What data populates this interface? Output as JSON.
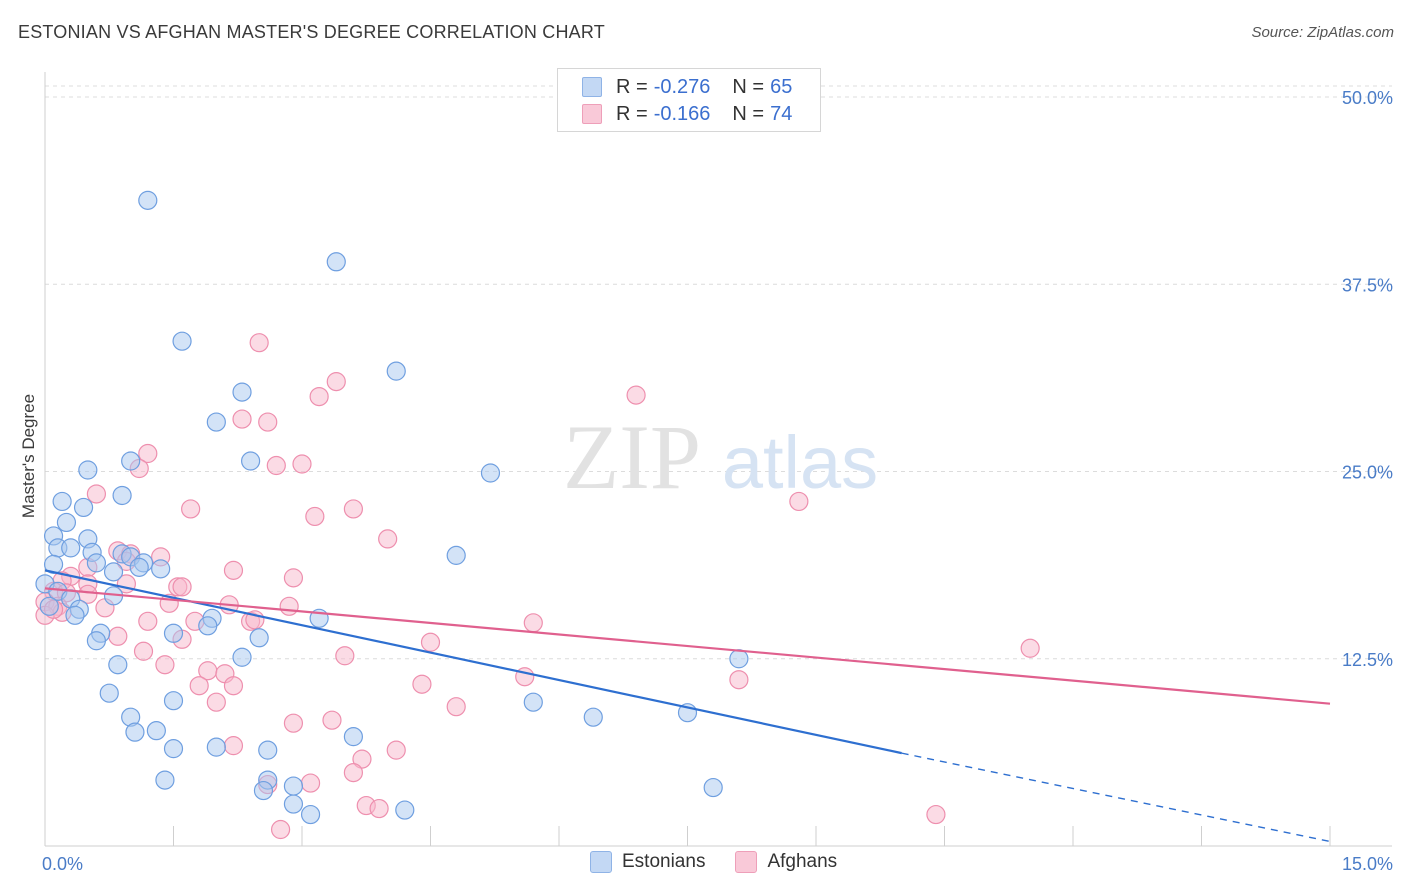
{
  "header": {
    "title": "ESTONIAN VS AFGHAN MASTER'S DEGREE CORRELATION CHART",
    "source": "Source: ZipAtlas.com"
  },
  "watermark": {
    "zip": "ZIP",
    "atlas": "atlas"
  },
  "legend": {
    "rows": [
      {
        "r_label": "R = ",
        "r_value": "-0.276",
        "n_label": "N = ",
        "n_value": "65",
        "color": "#a8c8f0"
      },
      {
        "r_label": "R = ",
        "r_value": "-0.166",
        "n_label": "N = ",
        "n_value": "74",
        "color": "#f7b8cc"
      }
    ]
  },
  "bottom_legend": {
    "items": [
      {
        "label": "Estonians",
        "color": "#a8c8f0"
      },
      {
        "label": "Afghans",
        "color": "#f7b8cc"
      }
    ]
  },
  "chart_data": {
    "type": "scatter",
    "title": "ESTONIAN VS AFGHAN MASTER'S DEGREE CORRELATION CHART",
    "xlabel": "",
    "ylabel": "Master's Degree",
    "xlim": [
      0,
      15
    ],
    "ylim": [
      0,
      51
    ],
    "x_tick_labels": [
      {
        "value": 0,
        "label": "0.0%"
      },
      {
        "value": 15,
        "label": "15.0%"
      }
    ],
    "y_tick_labels": [
      {
        "value": 12.5,
        "label": "12.5%"
      },
      {
        "value": 25,
        "label": "25.0%"
      },
      {
        "value": 37.5,
        "label": "37.5%"
      },
      {
        "value": 50,
        "label": "50.0%"
      }
    ],
    "x_minor_ticks": [
      0,
      1.5,
      3,
      4.5,
      6,
      7.5,
      9,
      10.5,
      12,
      13.5,
      15
    ],
    "grid": true,
    "legend_position": "top-center",
    "series": [
      {
        "name": "Estonians",
        "color": "#a8c8f0",
        "stroke": "#6f9fe0",
        "trend": {
          "x_start": 0,
          "y_start": 18.4,
          "x_end": 10.0,
          "y_end": 6.2,
          "dashed_to_x": 15,
          "dashed_to_y": 0.3,
          "color": "#2e6fd0"
        },
        "points": [
          [
            1.2,
            43.1
          ],
          [
            3.4,
            39.0
          ],
          [
            1.6,
            33.7
          ],
          [
            2.3,
            30.3
          ],
          [
            4.1,
            31.7
          ],
          [
            2.0,
            28.3
          ],
          [
            1.0,
            25.7
          ],
          [
            2.4,
            25.7
          ],
          [
            5.2,
            24.9
          ],
          [
            0.5,
            25.1
          ],
          [
            0.9,
            23.4
          ],
          [
            0.2,
            23.0
          ],
          [
            0.45,
            22.6
          ],
          [
            0.25,
            21.6
          ],
          [
            0.1,
            20.7
          ],
          [
            0.5,
            20.5
          ],
          [
            0.15,
            19.9
          ],
          [
            0.3,
            19.9
          ],
          [
            0.55,
            19.6
          ],
          [
            0.9,
            19.5
          ],
          [
            1.0,
            19.3
          ],
          [
            4.8,
            19.4
          ],
          [
            0.6,
            18.9
          ],
          [
            0.1,
            18.8
          ],
          [
            1.15,
            18.9
          ],
          [
            1.1,
            18.6
          ],
          [
            1.35,
            18.5
          ],
          [
            0.8,
            18.3
          ],
          [
            0.0,
            17.5
          ],
          [
            0.15,
            17.0
          ],
          [
            0.3,
            16.5
          ],
          [
            0.05,
            16.0
          ],
          [
            0.8,
            16.7
          ],
          [
            0.4,
            15.8
          ],
          [
            0.35,
            15.4
          ],
          [
            1.95,
            15.2
          ],
          [
            3.2,
            15.2
          ],
          [
            1.9,
            14.7
          ],
          [
            1.5,
            14.2
          ],
          [
            0.65,
            14.2
          ],
          [
            0.6,
            13.7
          ],
          [
            2.5,
            13.9
          ],
          [
            2.3,
            12.6
          ],
          [
            0.85,
            12.1
          ],
          [
            8.1,
            12.5
          ],
          [
            0.75,
            10.2
          ],
          [
            1.5,
            9.7
          ],
          [
            5.7,
            9.6
          ],
          [
            7.5,
            8.9
          ],
          [
            1.0,
            8.6
          ],
          [
            6.4,
            8.6
          ],
          [
            1.05,
            7.6
          ],
          [
            1.3,
            7.7
          ],
          [
            3.6,
            7.3
          ],
          [
            1.5,
            6.5
          ],
          [
            2.0,
            6.6
          ],
          [
            2.6,
            6.4
          ],
          [
            1.4,
            4.4
          ],
          [
            2.6,
            4.4
          ],
          [
            2.9,
            4.0
          ],
          [
            2.55,
            3.7
          ],
          [
            7.8,
            3.9
          ],
          [
            2.9,
            2.8
          ],
          [
            3.1,
            2.1
          ],
          [
            4.2,
            2.4
          ]
        ]
      },
      {
        "name": "Afghans",
        "color": "#f7b8cc",
        "stroke": "#ee8fae",
        "trend": {
          "x_start": 0,
          "y_start": 17.2,
          "x_end": 15,
          "y_end": 9.5,
          "color": "#e0608e"
        },
        "points": [
          [
            2.5,
            33.6
          ],
          [
            3.2,
            30.0
          ],
          [
            3.4,
            31.0
          ],
          [
            6.9,
            30.1
          ],
          [
            2.3,
            28.5
          ],
          [
            2.6,
            28.3
          ],
          [
            1.2,
            26.2
          ],
          [
            1.1,
            25.2
          ],
          [
            2.7,
            25.4
          ],
          [
            3.0,
            25.5
          ],
          [
            8.8,
            23.0
          ],
          [
            0.6,
            23.5
          ],
          [
            1.7,
            22.5
          ],
          [
            3.6,
            22.5
          ],
          [
            3.15,
            22.0
          ],
          [
            4.0,
            20.5
          ],
          [
            0.85,
            19.7
          ],
          [
            1.0,
            19.5
          ],
          [
            1.35,
            19.3
          ],
          [
            0.95,
            19.0
          ],
          [
            0.5,
            18.6
          ],
          [
            2.2,
            18.4
          ],
          [
            0.3,
            18.0
          ],
          [
            0.2,
            17.7
          ],
          [
            0.5,
            17.5
          ],
          [
            0.95,
            17.5
          ],
          [
            1.55,
            17.3
          ],
          [
            1.6,
            17.3
          ],
          [
            0.1,
            17.0
          ],
          [
            0.25,
            16.9
          ],
          [
            0.5,
            16.8
          ],
          [
            2.9,
            17.9
          ],
          [
            0.0,
            16.3
          ],
          [
            0.15,
            16.0
          ],
          [
            0.2,
            15.6
          ],
          [
            0.7,
            15.9
          ],
          [
            1.45,
            16.2
          ],
          [
            2.15,
            16.1
          ],
          [
            2.85,
            16.0
          ],
          [
            0.0,
            15.4
          ],
          [
            1.2,
            15.0
          ],
          [
            1.75,
            15.0
          ],
          [
            2.4,
            15.0
          ],
          [
            2.45,
            15.1
          ],
          [
            5.7,
            14.9
          ],
          [
            0.85,
            14.0
          ],
          [
            1.6,
            13.8
          ],
          [
            4.5,
            13.6
          ],
          [
            11.5,
            13.2
          ],
          [
            1.15,
            13.0
          ],
          [
            3.5,
            12.7
          ],
          [
            1.4,
            12.1
          ],
          [
            1.9,
            11.7
          ],
          [
            2.1,
            11.5
          ],
          [
            5.6,
            11.3
          ],
          [
            8.1,
            11.1
          ],
          [
            1.8,
            10.7
          ],
          [
            2.2,
            10.7
          ],
          [
            4.4,
            10.8
          ],
          [
            2.0,
            9.6
          ],
          [
            4.8,
            9.3
          ],
          [
            2.9,
            8.2
          ],
          [
            3.35,
            8.4
          ],
          [
            2.2,
            6.7
          ],
          [
            4.1,
            6.4
          ],
          [
            3.7,
            5.8
          ],
          [
            3.6,
            4.9
          ],
          [
            2.6,
            4.1
          ],
          [
            3.1,
            4.2
          ],
          [
            3.75,
            2.7
          ],
          [
            3.9,
            2.5
          ],
          [
            10.4,
            2.1
          ],
          [
            2.75,
            1.1
          ],
          [
            0.1,
            15.8
          ]
        ]
      }
    ]
  }
}
